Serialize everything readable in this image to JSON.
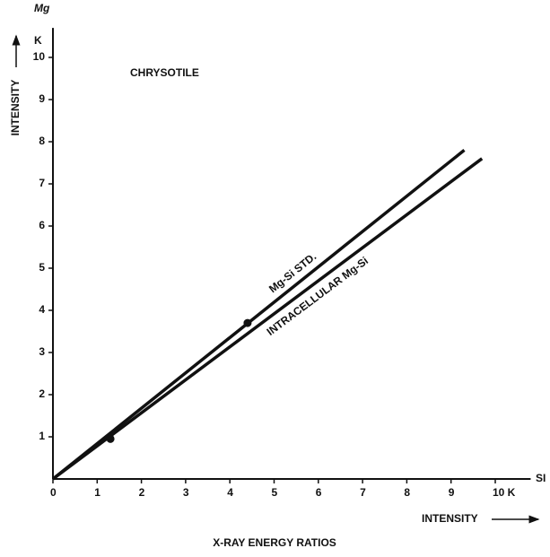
{
  "chart_data": {
    "type": "line",
    "title": "X-RAY ENERGY RATIOS",
    "annotation": "CHRYSOTILE",
    "x_label": "INTENSITY",
    "y_label": "INTENSITY",
    "x_element": "SI",
    "y_element": "Mg",
    "y_unit": "K",
    "xlim": [
      0,
      10.8
    ],
    "ylim": [
      0,
      10.7
    ],
    "xticks": [
      0,
      1,
      2,
      3,
      4,
      5,
      6,
      7,
      8,
      9,
      {
        "value": 10,
        "label": "10 K"
      }
    ],
    "yticks": [
      1,
      2,
      3,
      4,
      5,
      6,
      7,
      8,
      9,
      10
    ],
    "series": [
      {
        "name": "Mg-Si STD.",
        "color": "#111111",
        "x": [
          0,
          9.3
        ],
        "values": [
          0,
          7.8
        ]
      },
      {
        "name": "INTRACELLULAR Mg-Si",
        "color": "#111111",
        "x": [
          0,
          9.7
        ],
        "values": [
          0,
          7.6
        ]
      }
    ],
    "points": {
      "color": "#111111",
      "x": [
        4.4,
        1.3
      ],
      "values": [
        3.7,
        0.95
      ]
    }
  }
}
